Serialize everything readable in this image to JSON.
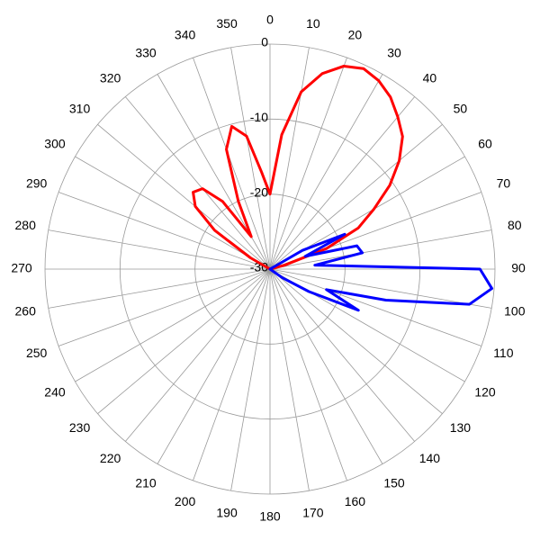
{
  "chart_data": {
    "type": "polar",
    "ylim": [
      -30,
      0
    ],
    "yticks": [
      -30,
      -20,
      -10,
      0
    ],
    "xticks": [
      0,
      10,
      20,
      30,
      40,
      50,
      60,
      70,
      80,
      90,
      100,
      110,
      120,
      130,
      140,
      150,
      160,
      170,
      180,
      190,
      200,
      210,
      220,
      230,
      240,
      250,
      260,
      270,
      280,
      290,
      300,
      310,
      320,
      330,
      340,
      350
    ],
    "grid": true,
    "series": [
      {
        "color": "#ff0000",
        "x": [
          0,
          5,
          10,
          15,
          20,
          25,
          30,
          35,
          40,
          45,
          50,
          55,
          60,
          65,
          70,
          75,
          80,
          85,
          90,
          95,
          100,
          105,
          110,
          115,
          120,
          125,
          130,
          135,
          140,
          145,
          150,
          155,
          160,
          165,
          170,
          175,
          180,
          185,
          190,
          195,
          200,
          205,
          210,
          215,
          220,
          225,
          230,
          235,
          240,
          245,
          250,
          255,
          260,
          265,
          270,
          275,
          280,
          285,
          290,
          295,
          300,
          305,
          310,
          315,
          320,
          325,
          330,
          335,
          340,
          345,
          350,
          355
        ],
        "values": [
          -20,
          -12,
          -6,
          -3,
          -1.2,
          -0.5,
          -1,
          -2,
          -3.5,
          -5,
          -7.5,
          -10.5,
          -14,
          -17,
          -22,
          -28,
          -30,
          -30,
          -30,
          -30,
          -30,
          -30,
          -30,
          -30,
          -30,
          -30,
          -30,
          -30,
          -30,
          -30,
          -30,
          -30,
          -30,
          -30,
          -30,
          -30,
          -30,
          -30,
          -30,
          -30,
          -30,
          -30,
          -30,
          -30,
          -30,
          -30,
          -30,
          -30,
          -30,
          -30,
          -30,
          -30,
          -30,
          -30,
          -30,
          -30,
          -30,
          -30,
          -30,
          -30,
          -27,
          -21,
          -17,
          -15.5,
          -16,
          -19,
          -25,
          -20,
          -13,
          -10.3,
          -12,
          -17
        ]
      },
      {
        "color": "#0000ff",
        "x": [
          0,
          5,
          10,
          15,
          20,
          25,
          30,
          35,
          40,
          45,
          50,
          55,
          60,
          65,
          70,
          75,
          80,
          85,
          90,
          95,
          100,
          105,
          110,
          115,
          120,
          125,
          130,
          135,
          140,
          145,
          150,
          155,
          160,
          165,
          170,
          175,
          180,
          185,
          190,
          195,
          200,
          205,
          210,
          215,
          220,
          225,
          230,
          235,
          240,
          245,
          250,
          255,
          260,
          265,
          270,
          275,
          280,
          285,
          290,
          295,
          300,
          305,
          310,
          315,
          320,
          325,
          330,
          335,
          340,
          345,
          350,
          355
        ],
        "values": [
          -30,
          -30,
          -30,
          -30,
          -30,
          -30,
          -30,
          -30,
          -30,
          -30,
          -30,
          -30,
          -25,
          -19,
          -25,
          -18,
          -17.5,
          -24,
          -2,
          -0.3,
          -3,
          -14,
          -22,
          -17,
          -24,
          -28,
          -30,
          -30,
          -30,
          -30,
          -30,
          -30,
          -30,
          -30,
          -30,
          -30,
          -30,
          -30,
          -30,
          -30,
          -30,
          -30,
          -30,
          -30,
          -30,
          -30,
          -30,
          -30,
          -30,
          -30,
          -30,
          -30,
          -30,
          -30,
          -30,
          -30,
          -30,
          -30,
          -30,
          -30,
          -30,
          -30,
          -30,
          -30,
          -30,
          -30,
          -30,
          -30,
          -30,
          -30,
          -30,
          -30
        ]
      }
    ]
  }
}
